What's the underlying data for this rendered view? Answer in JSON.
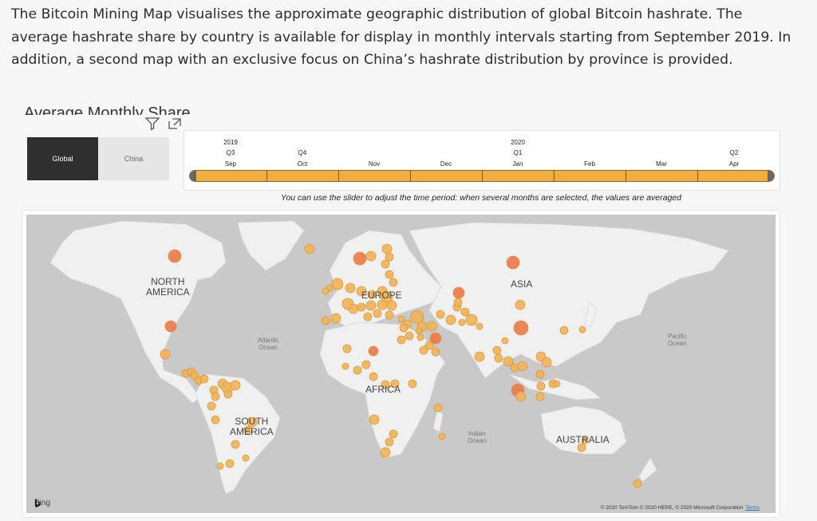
{
  "intro": {
    "text": "The Bitcoin Mining Map visualises the approximate geographic distribution of global Bitcoin hashrate. The average hashrate share by country is available for display in monthly intervals starting from September 2019. In addition, a second map with an exclusive focus on China’s hashrate distribution by province is provided."
  },
  "visual": {
    "title": "Average Monthly Share",
    "icons": [
      "filter-icon",
      "focus-mode-icon"
    ]
  },
  "slicer": {
    "options": [
      {
        "label": "Global",
        "selected": true
      },
      {
        "label": "China",
        "selected": false
      }
    ]
  },
  "timeline": {
    "years": [
      "2019",
      "2020"
    ],
    "quarters": [
      "Q3",
      "Q4",
      "Q1",
      "Q2"
    ],
    "months": [
      "Sep",
      "Oct",
      "Nov",
      "Dec",
      "Jan",
      "Feb",
      "Mar",
      "Apr"
    ],
    "bar_color": "#f1ad3e",
    "note": "You can use the slider to adjust the time period: when several months are selected, the values are averaged"
  },
  "map": {
    "labels": {
      "north_america": "NORTH\nAMERICA",
      "europe": "EUROPE",
      "asia": "ASIA",
      "africa": "AFRICA",
      "south_america": "SOUTH\nAMERICA",
      "australia": "AUSTRALIA",
      "atlantic": "Atlantic\nOcean",
      "pacific": "Pacific\nOcean",
      "indian": "Indian\nOcean"
    },
    "land_color": "#f0f0f0",
    "ocean_color": "#c9c9c9",
    "bubble_color": "#f2b45b",
    "highlight_color": "#ec7b52",
    "provider": "Bing",
    "copyright": "© 2020 TomTom © 2020 HERE, © 2020 Microsoft Corporation",
    "terms": "Terms"
  }
}
